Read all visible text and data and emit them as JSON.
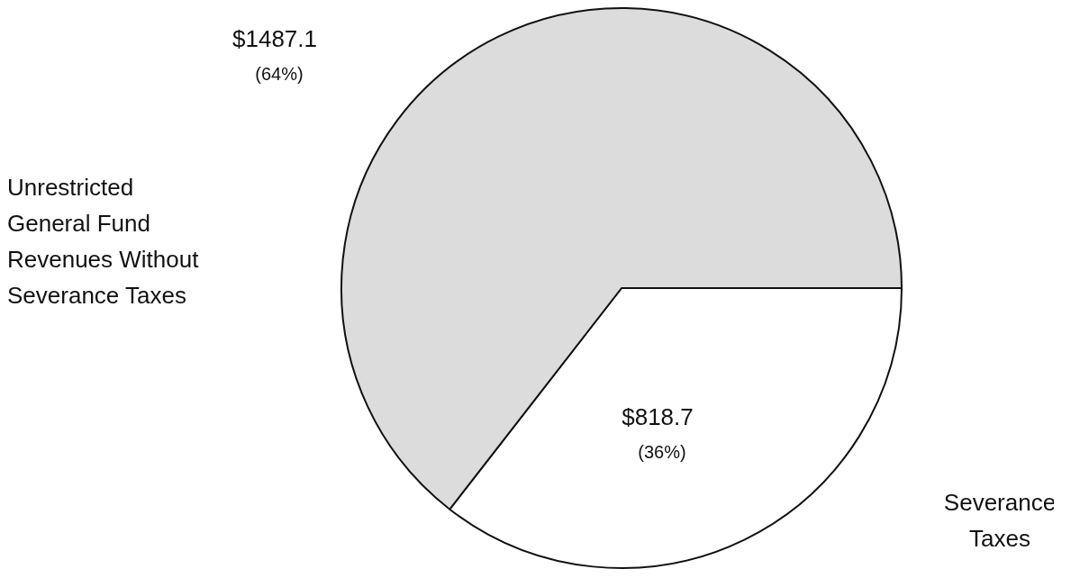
{
  "chart_data": {
    "type": "pie",
    "categories": [
      "Severance Taxes",
      "Unrestricted General Fund Revenues Without Severance Taxes"
    ],
    "values": [
      818.7,
      1487.1
    ],
    "colors": [
      "#ffffff",
      "#dcdcdc"
    ],
    "value_labels": [
      "$818.7 (36%)",
      "$1487.1 (64%)"
    ],
    "legend": false
  }
}
